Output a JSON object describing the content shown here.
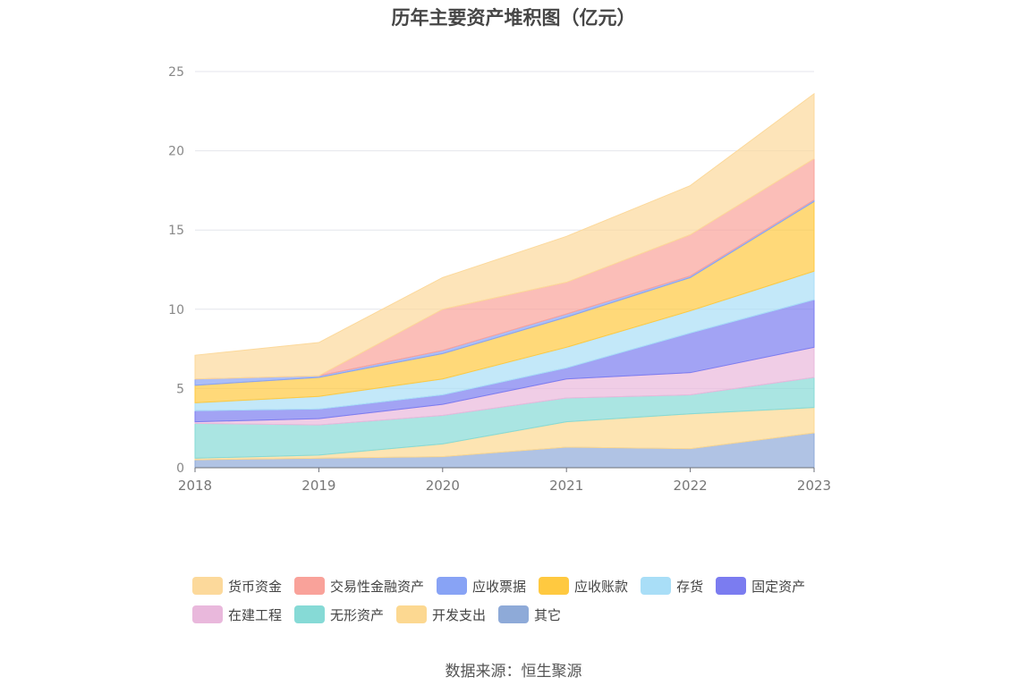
{
  "chart_data": {
    "type": "area",
    "title": "历年主要资产堆积图（亿元）",
    "stacked": true,
    "x": [
      "2018",
      "2019",
      "2020",
      "2021",
      "2022",
      "2023"
    ],
    "ylim": [
      0,
      25
    ],
    "yticks": [
      0,
      5,
      10,
      15,
      20,
      25
    ],
    "grid": true,
    "legend_position": "bottom",
    "series": [
      {
        "name": "其它",
        "color": "#8eaad8",
        "values": [
          0.5,
          0.6,
          0.7,
          1.3,
          1.2,
          2.2
        ]
      },
      {
        "name": "开发支出",
        "color": "#fcd891",
        "values": [
          0.1,
          0.2,
          0.8,
          1.6,
          2.2,
          1.6
        ]
      },
      {
        "name": "无形资产",
        "color": "#86dad6",
        "values": [
          2.2,
          1.9,
          1.8,
          1.5,
          1.2,
          1.9
        ]
      },
      {
        "name": "在建工程",
        "color": "#e9b8dc",
        "values": [
          0.1,
          0.4,
          0.7,
          1.2,
          1.4,
          1.9
        ]
      },
      {
        "name": "固定资产",
        "color": "#7b7cf0",
        "values": [
          0.7,
          0.6,
          0.6,
          0.7,
          2.5,
          3.0
        ]
      },
      {
        "name": "存货",
        "color": "#a9def7",
        "values": [
          0.5,
          0.8,
          1.0,
          1.3,
          1.4,
          1.8
        ]
      },
      {
        "name": "应收账款",
        "color": "#ffc940",
        "values": [
          1.1,
          1.2,
          1.6,
          1.9,
          2.1,
          4.4
        ]
      },
      {
        "name": "应收票据",
        "color": "#88a3f5",
        "values": [
          0.4,
          0.1,
          0.2,
          0.2,
          0.1,
          0.1
        ]
      },
      {
        "name": "交易性金融资产",
        "color": "#f9a29a",
        "values": [
          0.0,
          0.0,
          2.6,
          2.0,
          2.6,
          2.6
        ]
      },
      {
        "name": "货币资金",
        "color": "#fcd99b",
        "values": [
          1.5,
          2.1,
          2.0,
          2.9,
          3.1,
          4.1
        ]
      }
    ]
  },
  "legend": [
    [
      "货币资金",
      "交易性金融资产",
      "应收票据",
      "应收账款",
      "存货",
      "固定资产"
    ],
    [
      "在建工程",
      "无形资产",
      "开发支出",
      "其它"
    ]
  ],
  "source": "数据来源：恒生聚源"
}
